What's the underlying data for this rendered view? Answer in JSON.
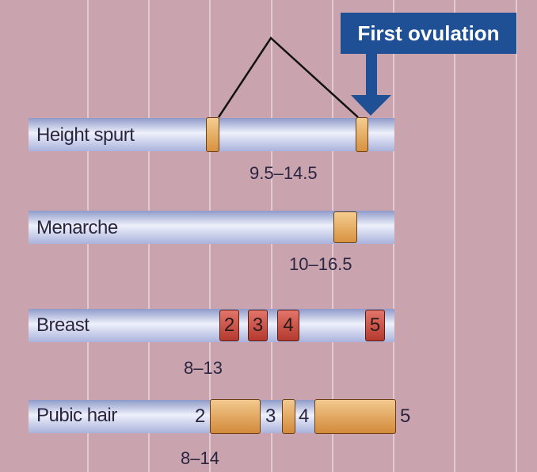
{
  "first_ovulation": {
    "label": "First ovulation"
  },
  "rows": {
    "height_spurt": {
      "label": "Height spurt",
      "range": "9.5–14.5"
    },
    "menarche": {
      "label": "Menarche",
      "range": "10–16.5"
    },
    "breast": {
      "label": "Breast",
      "range": "8–13",
      "stages": [
        "2",
        "3",
        "4",
        "5"
      ]
    },
    "pubic_hair": {
      "label": "Pubic hair",
      "range": "8–14",
      "stages": [
        "2",
        "3",
        "4",
        "5"
      ]
    }
  },
  "colors": {
    "background": "#c9a4ae",
    "bar": "#b8c0e6",
    "marker_orange": "#e5a253",
    "marker_red": "#c94a3c",
    "callout_blue": "#1f4f95"
  }
}
